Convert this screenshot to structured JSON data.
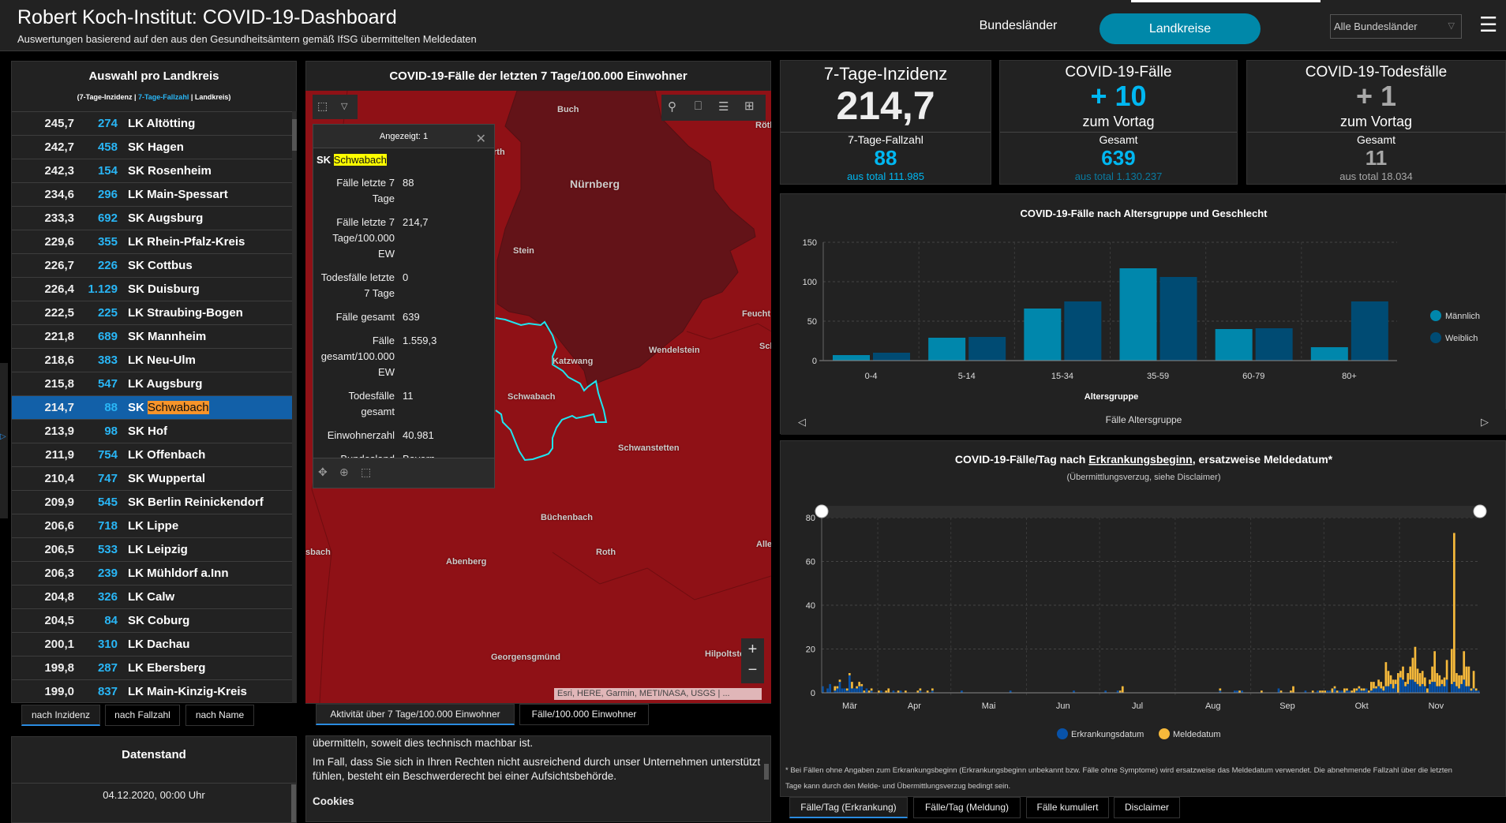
{
  "header": {
    "title": "Robert Koch-Institut: COVID-19-Dashboard",
    "subtitle": "Auswertungen basierend auf den aus den Gesundheitsämtern gemäß IfSG übermittelten Meldedaten",
    "nav": [
      "Bundesländer",
      "Landkreise"
    ],
    "active_nav": "Landkreise",
    "dropdown_value": "Alle Bundesländer",
    "accent": "#0088a9"
  },
  "list": {
    "title": "Auswahl pro Landkreis",
    "sub_a": "(7-Tage-Inzidenz | ",
    "sub_b": "7-Tage-Fallzahl",
    "sub_c": " | Landkreis)",
    "selected_color": "#1260a8",
    "rows": [
      {
        "inz": "245,7",
        "cnt": "274",
        "type": "LK",
        "name": "Altötting"
      },
      {
        "inz": "242,7",
        "cnt": "458",
        "type": "SK",
        "name": "Hagen"
      },
      {
        "inz": "242,3",
        "cnt": "154",
        "type": "SK",
        "name": "Rosenheim"
      },
      {
        "inz": "234,6",
        "cnt": "296",
        "type": "LK",
        "name": "Main-Spessart"
      },
      {
        "inz": "233,3",
        "cnt": "692",
        "type": "SK",
        "name": "Augsburg"
      },
      {
        "inz": "229,6",
        "cnt": "355",
        "type": "LK",
        "name": "Rhein-Pfalz-Kreis"
      },
      {
        "inz": "226,7",
        "cnt": "226",
        "type": "SK",
        "name": "Cottbus"
      },
      {
        "inz": "226,4",
        "cnt": "1.129",
        "type": "SK",
        "name": "Duisburg"
      },
      {
        "inz": "222,5",
        "cnt": "225",
        "type": "LK",
        "name": "Straubing-Bogen"
      },
      {
        "inz": "221,8",
        "cnt": "689",
        "type": "SK",
        "name": "Mannheim"
      },
      {
        "inz": "218,6",
        "cnt": "383",
        "type": "LK",
        "name": "Neu-Ulm"
      },
      {
        "inz": "215,8",
        "cnt": "547",
        "type": "LK",
        "name": "Augsburg"
      },
      {
        "inz": "214,7",
        "cnt": "88",
        "type": "SK",
        "name": "Schwabach",
        "selected": true
      },
      {
        "inz": "213,9",
        "cnt": "98",
        "type": "SK",
        "name": "Hof"
      },
      {
        "inz": "211,9",
        "cnt": "754",
        "type": "LK",
        "name": "Offenbach"
      },
      {
        "inz": "210,4",
        "cnt": "747",
        "type": "SK",
        "name": "Wuppertal"
      },
      {
        "inz": "209,9",
        "cnt": "545",
        "type": "SK",
        "name": "Berlin Reinickendorf"
      },
      {
        "inz": "206,6",
        "cnt": "718",
        "type": "LK",
        "name": "Lippe"
      },
      {
        "inz": "206,5",
        "cnt": "533",
        "type": "LK",
        "name": "Leipzig"
      },
      {
        "inz": "206,3",
        "cnt": "239",
        "type": "LK",
        "name": "Mühldorf a.Inn"
      },
      {
        "inz": "204,8",
        "cnt": "326",
        "type": "LK",
        "name": "Calw"
      },
      {
        "inz": "204,5",
        "cnt": "84",
        "type": "SK",
        "name": "Coburg"
      },
      {
        "inz": "200,1",
        "cnt": "310",
        "type": "LK",
        "name": "Dachau"
      },
      {
        "inz": "199,8",
        "cnt": "287",
        "type": "LK",
        "name": "Ebersberg"
      },
      {
        "inz": "199,0",
        "cnt": "837",
        "type": "LK",
        "name": "Main-Kinzig-Kreis"
      }
    ],
    "tabs": [
      "nach Inzidenz",
      "nach Fallzahl",
      "nach Name"
    ]
  },
  "datenstand": {
    "title": "Datenstand",
    "value": "04.12.2020, 00:00 Uhr"
  },
  "map": {
    "title": "COVID-19-Fälle der letzten 7 Tage/100.000 Einwohner",
    "labels": [
      "Buch",
      "Nürnberg",
      "rth",
      "Stein",
      "Feucht",
      "Wendelstein",
      "Katzwang",
      "Schwabach",
      "Schwanstetten",
      "Röth",
      "Sch",
      "Büchenbach",
      "Roth",
      "Alle",
      "sbach",
      "Abenberg",
      "Georgensgmünd",
      "Hilpoltste"
    ],
    "attribution": "Esri, HERE, Garmin, METI/NASA, USGS | ...",
    "zoom_in": "+",
    "zoom_out": "−",
    "tabs": [
      "Aktivität über 7 Tage/100.000 Einwohner",
      "Fälle/100.000 Einwohner"
    ],
    "popup": {
      "header": "Angezeigt: 1",
      "type": "SK",
      "name": "Schwabach",
      "fields": [
        {
          "k": "Fälle letzte 7 Tage",
          "v": "88"
        },
        {
          "k": "Fälle letzte 7 Tage/100.000 EW",
          "v": "214,7"
        },
        {
          "k": "Todesfälle letzte 7 Tage",
          "v": "0"
        },
        {
          "k": "Fälle gesamt",
          "v": "639"
        },
        {
          "k": "Fälle gesamt/100.000 EW",
          "v": "1.559,3"
        },
        {
          "k": "Todesfälle gesamt",
          "v": "11"
        },
        {
          "k": "Einwohnerzahl",
          "v": "40.981"
        },
        {
          "k": "Bundesland",
          "v": "Bayern"
        }
      ]
    }
  },
  "info_text": {
    "p1": "übermitteln, soweit dies technisch machbar ist.",
    "p2": "Im Fall, dass Sie sich in Ihren Rechten nicht ausreichend durch unser Unternehmen unterstützt fühlen, besteht ein Beschwerderecht bei einer Aufsichtsbehörde.",
    "h": "Cookies"
  },
  "kpis": [
    {
      "title": "7-Tage-Inzidenz",
      "value": "214,7",
      "label": "7-Tage-Fallzahl",
      "num": "88",
      "total_prefix": "aus total",
      "total": "111.985"
    },
    {
      "title": "COVID-19-Fälle",
      "value": "+ 10",
      "sub": "zum Vortag",
      "label": "Gesamt",
      "num": "639",
      "total_prefix": "aus total",
      "total": "1.130.237"
    },
    {
      "title": "COVID-19-Todesfälle",
      "value": "+ 1",
      "sub": "zum Vortag",
      "label": "Gesamt",
      "num": "11",
      "total_prefix": "aus total",
      "total": "18.034"
    }
  ],
  "colors": {
    "cyan": "#00b7f1",
    "grey": "#a8a8a8",
    "male": "#0087ac",
    "female": "#004b73",
    "erkrankung": "#0852a8",
    "melde": "#f6b93b"
  },
  "chart_data": [
    {
      "type": "bar",
      "title": "COVID-19-Fälle nach Altersgruppe und Geschlecht",
      "xlabel": "Altersgruppe",
      "ylabel": "",
      "footer": "Fälle Altersgruppe",
      "categories": [
        "0-4",
        "5-14",
        "15-34",
        "35-59",
        "60-79",
        "80+"
      ],
      "series": [
        {
          "name": "Männlich",
          "values": [
            7,
            29,
            66,
            117,
            40,
            17
          ]
        },
        {
          "name": "Weiblich",
          "values": [
            10,
            30,
            75,
            106,
            41,
            75
          ]
        }
      ],
      "ylim": [
        0,
        150
      ],
      "yticks": [
        0,
        50,
        100,
        150
      ],
      "grid": true,
      "legend": "right"
    },
    {
      "type": "bar",
      "stacked": true,
      "title_a": "COVID-19-Fälle/Tag nach ",
      "title_b": "Erkrankungsbeginn",
      "title_c": ", ersatzweise Meldedatum*",
      "subtitle": "(Übermittlungsverzug, siehe Disclaimer)",
      "xlim": [
        "2020-03-09",
        "2020-12-03"
      ],
      "month_ticks": [
        "Mär",
        "Apr",
        "Mai",
        "Jun",
        "Jul",
        "Aug",
        "Sep",
        "Okt",
        "Nov"
      ],
      "ylim": [
        0,
        80
      ],
      "yticks": [
        0,
        20,
        40,
        60,
        80
      ],
      "grid": true,
      "legend": "bottom",
      "series": [
        {
          "name": "Erkrankungsdatum",
          "values": [
            3,
            0,
            2,
            4,
            0,
            1,
            2,
            5,
            2,
            2,
            1,
            8,
            2,
            2,
            2,
            3,
            3,
            0,
            2,
            0,
            1,
            0,
            0,
            0,
            1,
            0,
            0,
            0,
            0,
            1,
            0,
            0,
            1,
            0,
            0,
            0,
            0,
            0,
            0,
            0,
            1,
            0,
            0,
            0,
            0,
            1,
            0,
            0,
            0,
            0,
            0,
            0,
            0,
            0,
            0,
            0,
            0,
            1,
            0,
            0,
            0,
            0,
            0,
            0,
            0,
            0,
            0,
            0,
            0,
            0,
            0,
            0,
            0,
            0,
            0,
            0,
            0,
            1,
            0,
            0,
            0,
            0,
            0,
            0,
            0,
            0,
            0,
            0,
            0,
            0,
            0,
            0,
            0,
            0,
            0,
            0,
            0,
            0,
            0,
            0,
            0,
            0,
            0,
            1,
            0,
            0,
            0,
            0,
            0,
            0,
            0,
            0,
            0,
            0,
            0,
            0,
            1,
            0,
            0,
            0,
            0,
            1,
            0,
            0,
            0,
            0,
            0,
            0,
            0,
            0,
            0,
            0,
            0,
            0,
            0,
            0,
            0,
            0,
            0,
            0,
            0,
            0,
            0,
            0,
            0,
            0,
            0,
            0,
            0,
            0,
            0,
            0,
            0,
            0,
            0,
            0,
            0,
            0,
            0,
            0,
            0,
            0,
            0,
            1,
            0,
            0,
            0,
            0,
            0,
            1,
            1,
            0,
            1,
            0,
            0,
            0,
            0,
            0,
            0,
            0,
            0,
            0,
            0,
            0,
            0,
            0,
            0,
            2,
            0,
            0,
            0,
            0,
            0,
            0,
            0,
            0,
            0,
            0,
            1,
            0,
            0,
            0,
            0,
            1,
            0,
            0,
            0,
            1,
            1,
            0,
            2,
            0,
            1,
            1,
            0,
            1,
            1,
            0,
            0,
            1,
            2,
            1,
            1,
            2,
            0,
            1,
            2,
            2,
            3,
            2,
            1,
            3,
            3,
            4,
            2,
            4,
            0,
            7,
            6,
            3,
            4,
            6,
            6,
            5,
            4,
            3,
            4,
            3,
            0,
            4,
            5,
            5,
            3,
            3,
            4,
            3,
            6,
            0,
            4,
            5,
            3,
            2,
            4,
            6,
            3,
            3,
            1,
            2,
            1,
            1
          ]
        },
        {
          "name": "Meldedatum",
          "values": [
            0,
            0,
            0,
            0,
            0,
            2,
            1,
            1,
            0,
            0,
            1,
            1,
            3,
            0,
            1,
            2,
            1,
            1,
            0,
            1,
            1,
            0,
            0,
            1,
            0,
            0,
            1,
            2,
            0,
            0,
            0,
            1,
            0,
            0,
            1,
            0,
            0,
            0,
            0,
            1,
            1,
            0,
            0,
            1,
            0,
            1,
            0,
            0,
            0,
            0,
            0,
            0,
            0,
            0,
            0,
            0,
            0,
            0,
            0,
            0,
            0,
            0,
            0,
            0,
            0,
            0,
            0,
            0,
            0,
            0,
            0,
            0,
            0,
            0,
            0,
            0,
            0,
            0,
            0,
            0,
            0,
            0,
            0,
            0,
            0,
            0,
            0,
            0,
            0,
            0,
            0,
            0,
            0,
            0,
            0,
            0,
            0,
            0,
            0,
            0,
            0,
            0,
            0,
            0,
            0,
            0,
            0,
            0,
            0,
            0,
            0,
            0,
            0,
            0,
            0,
            0,
            0,
            0,
            0,
            0,
            0,
            0,
            1,
            3,
            0,
            0,
            0,
            0,
            0,
            0,
            0,
            0,
            0,
            0,
            0,
            0,
            0,
            0,
            0,
            0,
            0,
            0,
            0,
            0,
            0,
            0,
            0,
            0,
            0,
            0,
            0,
            0,
            0,
            0,
            0,
            0,
            0,
            0,
            0,
            0,
            0,
            0,
            0,
            1,
            0,
            0,
            0,
            0,
            0,
            0,
            0,
            1,
            0,
            0,
            0,
            0,
            0,
            0,
            0,
            0,
            1,
            0,
            0,
            0,
            0,
            0,
            0,
            0,
            1,
            0,
            0,
            0,
            1,
            3,
            0,
            0,
            0,
            0,
            0,
            0,
            0,
            1,
            0,
            0,
            1,
            1,
            1,
            0,
            0,
            2,
            1,
            1,
            0,
            0,
            2,
            1,
            0,
            1,
            2,
            1,
            1,
            1,
            1,
            0,
            1,
            4,
            3,
            1,
            3,
            3,
            2,
            11,
            7,
            4,
            4,
            2,
            9,
            3,
            6,
            2,
            5,
            6,
            10,
            16,
            7,
            6,
            6,
            4,
            2,
            2,
            7,
            14,
            6,
            5,
            2,
            4,
            9,
            0,
            16,
            68,
            6,
            6,
            4,
            13,
            9,
            9,
            1,
            8,
            1,
            0
          ]
        }
      ],
      "footnote": "* Bei Fällen ohne Angaben zum Erkrankungsbeginn (Erkrankungsbeginn unbekannt bzw. Fälle ohne Symptome) wird ersatzweise das Meldedatum verwendet. Die abnehmende Fallzahl über die letzten Tage kann durch den Melde- und Übermittlungsverzug bedingt sein.",
      "tabs": [
        "Fälle/Tag (Erkrankung)",
        "Fälle/Tag (Meldung)",
        "Fälle kumuliert",
        "Disclaimer"
      ]
    }
  ]
}
